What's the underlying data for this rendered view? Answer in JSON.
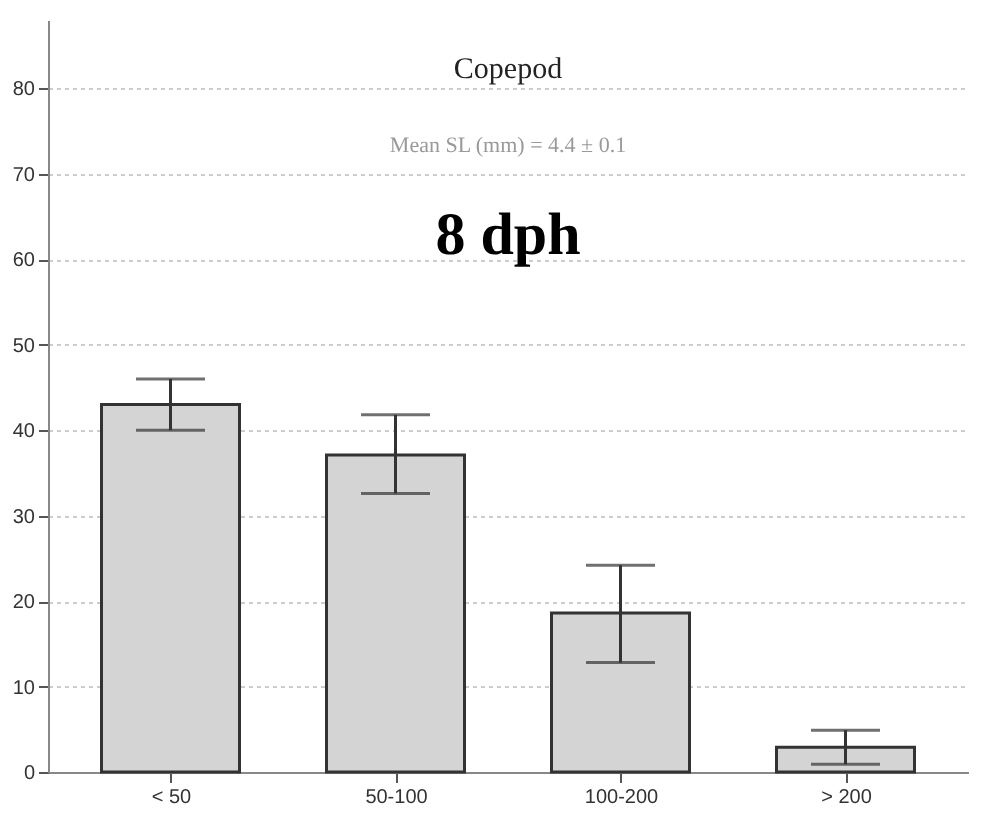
{
  "chart_data": {
    "type": "bar",
    "title": "Copepod",
    "annotations": [
      "Mean SL (mm) = 4.4 ± 0.1",
      "8 dph"
    ],
    "categories": [
      "< 50",
      "50-100",
      "100-200",
      "> 200"
    ],
    "values": [
      43,
      37.1,
      18.6,
      2.9
    ],
    "errors": [
      [
        40,
        46
      ],
      [
        32.6,
        41.8
      ],
      [
        12.8,
        24.2
      ],
      [
        0.9,
        4.9
      ]
    ],
    "color": "#d4d4d4",
    "ylim": [
      0,
      88
    ],
    "yticks": [
      0,
      10,
      20,
      30,
      40,
      50,
      60,
      70,
      80
    ],
    "grid": "y"
  }
}
